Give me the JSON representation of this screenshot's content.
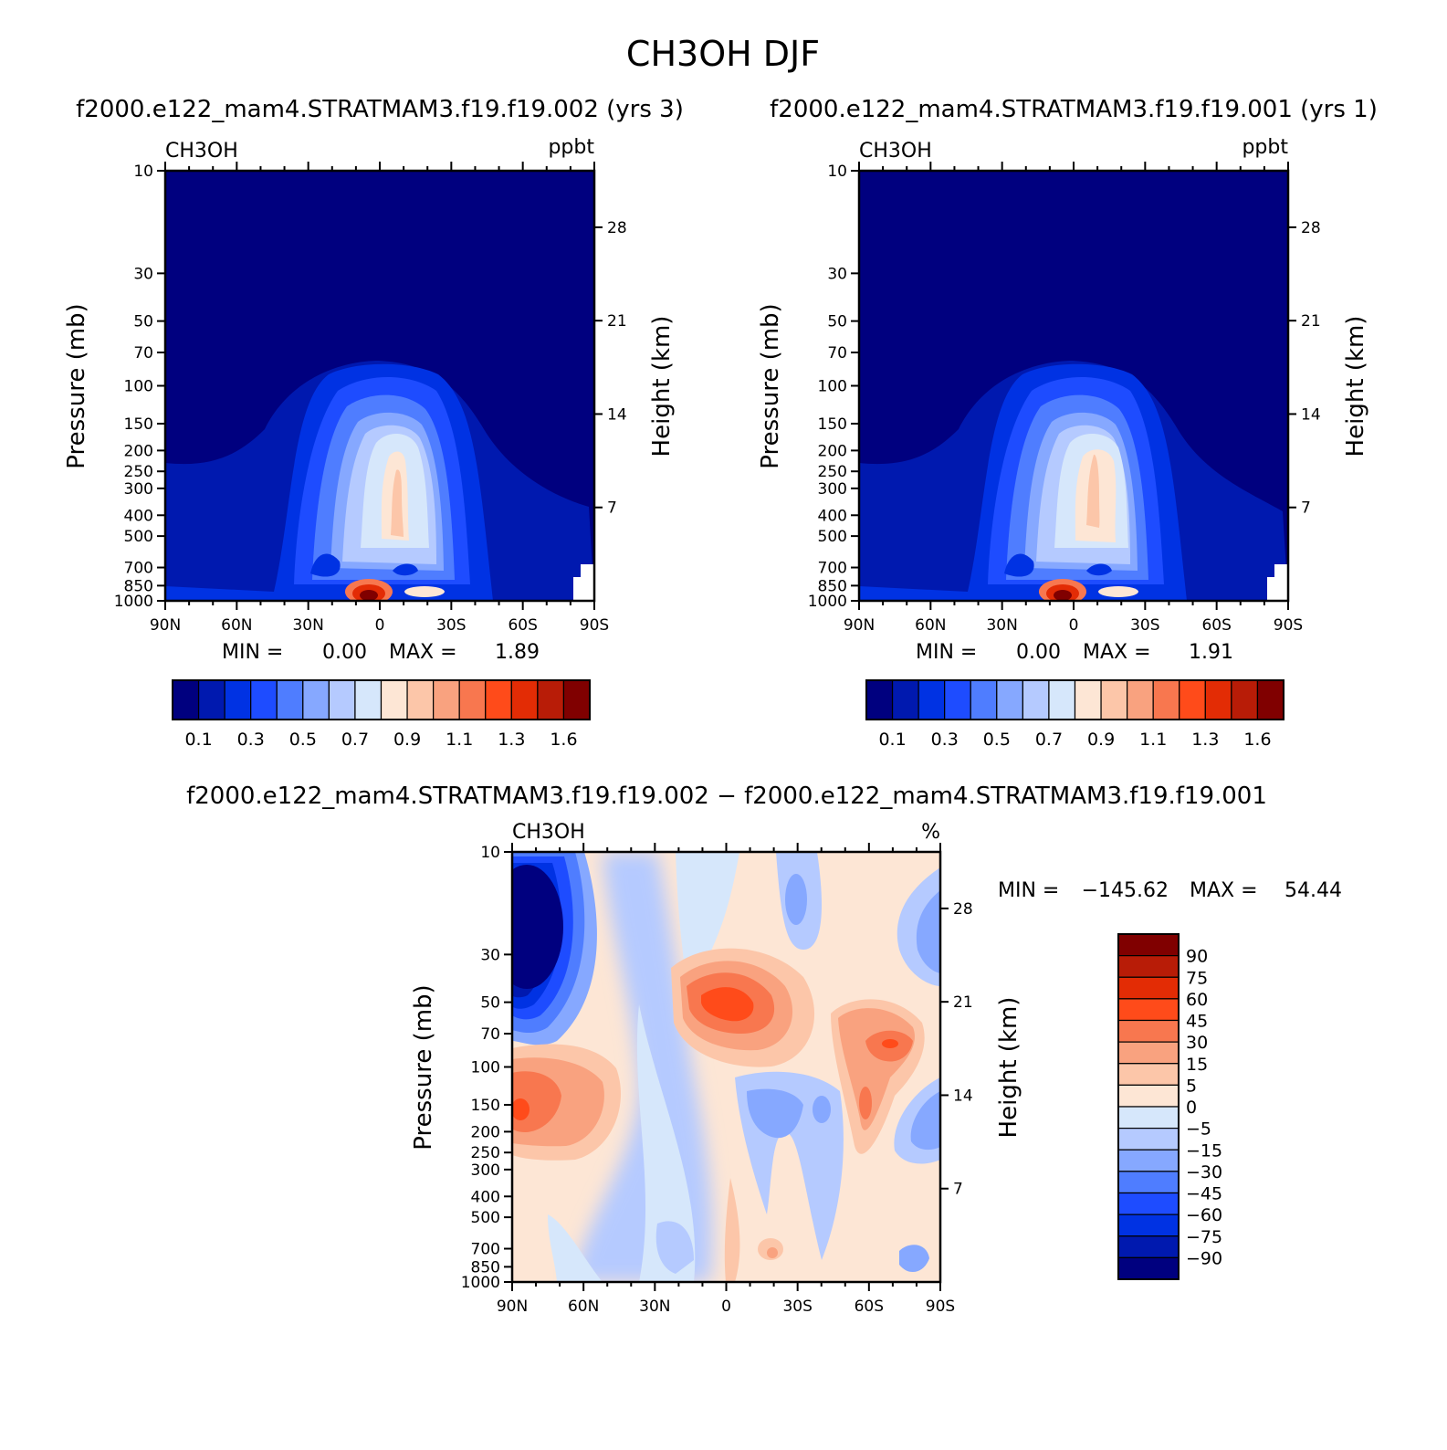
{
  "figure": {
    "title": "CH3OH DJF"
  },
  "chart_data": [
    {
      "type": "heatmap",
      "id": "case1",
      "title": "f2000.e122_mam4.STRATMAM3.f19.f19.002 (yrs 3)",
      "variable": "CH3OH",
      "units": "ppbt",
      "xlabel": "",
      "ylabel": "Pressure (mb)",
      "y2label": "Height (km)",
      "x_ticks": [
        "90N",
        "60N",
        "30N",
        "0",
        "30S",
        "60S",
        "90S"
      ],
      "y_ticks": [
        10,
        30,
        50,
        70,
        100,
        150,
        200,
        250,
        300,
        400,
        500,
        700,
        850,
        1000
      ],
      "y2_ticks": [
        28,
        21,
        14,
        7
      ],
      "ylim": [
        1000,
        10
      ],
      "min_label": "MIN =",
      "min_value": "0.00",
      "max_label": "MAX =",
      "max_value": "1.89",
      "legend_position": "bottom",
      "colorbar_labels": [
        "0.1",
        "0.3",
        "0.5",
        "0.7",
        "0.9",
        "1.1",
        "1.3",
        "1.6"
      ],
      "colorbar_colors": [
        "#00007f",
        "#0019af",
        "#0032e3",
        "#1e4cff",
        "#4f7dff",
        "#86a8ff",
        "#b5caff",
        "#d6e7fb",
        "#fde6d5",
        "#fcc6a9",
        "#f9a27f",
        "#f8774f",
        "#ff4b1a",
        "#e32c05",
        "#b81c07",
        "#800000"
      ]
    },
    {
      "type": "heatmap",
      "id": "case2",
      "title": "f2000.e122_mam4.STRATMAM3.f19.f19.001 (yrs 1)",
      "variable": "CH3OH",
      "units": "ppbt",
      "xlabel": "",
      "ylabel": "Pressure (mb)",
      "y2label": "Height (km)",
      "x_ticks": [
        "90N",
        "60N",
        "30N",
        "0",
        "30S",
        "60S",
        "90S"
      ],
      "y_ticks": [
        10,
        30,
        50,
        70,
        100,
        150,
        200,
        250,
        300,
        400,
        500,
        700,
        850,
        1000
      ],
      "y2_ticks": [
        28,
        21,
        14,
        7
      ],
      "ylim": [
        1000,
        10
      ],
      "min_label": "MIN =",
      "min_value": "0.00",
      "max_label": "MAX =",
      "max_value": "1.91",
      "legend_position": "bottom",
      "colorbar_labels": [
        "0.1",
        "0.3",
        "0.5",
        "0.7",
        "0.9",
        "1.1",
        "1.3",
        "1.6"
      ],
      "colorbar_colors": [
        "#00007f",
        "#0019af",
        "#0032e3",
        "#1e4cff",
        "#4f7dff",
        "#86a8ff",
        "#b5caff",
        "#d6e7fb",
        "#fde6d5",
        "#fcc6a9",
        "#f9a27f",
        "#f8774f",
        "#ff4b1a",
        "#e32c05",
        "#b81c07",
        "#800000"
      ]
    },
    {
      "type": "heatmap",
      "id": "diff",
      "title": "f2000.e122_mam4.STRATMAM3.f19.f19.002 − f2000.e122_mam4.STRATMAM3.f19.f19.001",
      "variable": "CH3OH",
      "units": "%",
      "xlabel": "",
      "ylabel": "Pressure (mb)",
      "y2label": "Height (km)",
      "x_ticks": [
        "90N",
        "60N",
        "30N",
        "0",
        "30S",
        "60S",
        "90S"
      ],
      "y_ticks": [
        10,
        30,
        50,
        70,
        100,
        150,
        200,
        250,
        300,
        400,
        500,
        700,
        850,
        1000
      ],
      "y2_ticks": [
        28,
        21,
        14,
        7
      ],
      "ylim": [
        1000,
        10
      ],
      "min_label": "MIN =",
      "min_value": "−145.62",
      "max_label": "MAX =",
      "max_value": "54.44",
      "legend_position": "right",
      "colorbar_labels": [
        "90",
        "75",
        "60",
        "45",
        "30",
        "15",
        "5",
        "0",
        "−5",
        "−15",
        "−30",
        "−45",
        "−60",
        "−75",
        "−90"
      ],
      "colorbar_colors": [
        "#800000",
        "#b81c07",
        "#e32c05",
        "#ff4b1a",
        "#f8774f",
        "#f9a27f",
        "#fcc6a9",
        "#fde6d5",
        "#d6e7fb",
        "#b5caff",
        "#86a8ff",
        "#4f7dff",
        "#1e4cff",
        "#0032e3",
        "#0019af",
        "#00007f"
      ]
    }
  ]
}
